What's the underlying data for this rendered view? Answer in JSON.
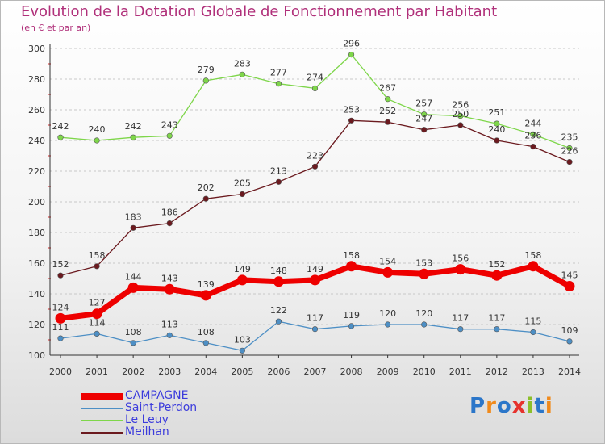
{
  "title": "Evolution de la Dotation Globale de Fonctionnement par Habitant",
  "subtitle": "(en € et par an)",
  "logo": {
    "text": "Proxiti",
    "colors": [
      "#2b76c9",
      "#f08a1c",
      "#2b76c9",
      "#e6322d",
      "#8cbf2a",
      "#2b76c9",
      "#f08a1c"
    ]
  },
  "colors": {
    "title": "#b0307a",
    "axis": "#333333",
    "grid": "#c8c8c8",
    "tick_mark": "#cc2222",
    "legend_text": "#3c3cdc"
  },
  "chart_data": {
    "type": "line",
    "x": [
      2000,
      2001,
      2002,
      2003,
      2004,
      2005,
      2006,
      2007,
      2008,
      2009,
      2010,
      2011,
      2012,
      2013,
      2014
    ],
    "ylim": [
      100,
      300
    ],
    "yticks": [
      100,
      120,
      140,
      160,
      180,
      200,
      220,
      240,
      260,
      280,
      300
    ],
    "grid": "horizontal dashed",
    "legend_position": "bottom-left",
    "series": [
      {
        "name": "CAMPAGNE",
        "color": "#ee0000",
        "values": [
          124,
          127,
          144,
          143,
          139,
          149,
          148,
          149,
          158,
          154,
          153,
          156,
          152,
          158,
          145
        ]
      },
      {
        "name": "Saint-Perdon",
        "color": "#4d8fc5",
        "values": [
          111,
          114,
          108,
          113,
          108,
          103,
          122,
          117,
          119,
          120,
          120,
          117,
          117,
          115,
          109
        ]
      },
      {
        "name": "Le Leuy",
        "color": "#7ed64a",
        "values": [
          242,
          240,
          242,
          243,
          279,
          283,
          277,
          274,
          296,
          267,
          257,
          256,
          251,
          244,
          235
        ]
      },
      {
        "name": "Meilhan",
        "color": "#6b1a1f",
        "values": [
          152,
          158,
          183,
          186,
          202,
          205,
          213,
          223,
          253,
          252,
          247,
          250,
          240,
          236,
          226
        ]
      }
    ]
  }
}
